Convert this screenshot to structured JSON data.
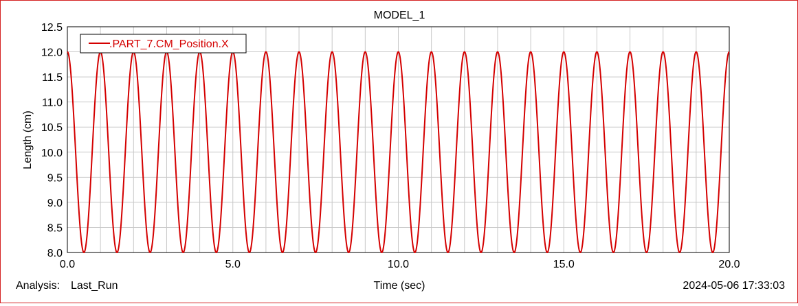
{
  "chart_data": {
    "type": "line",
    "title": "MODEL_1",
    "xlabel": "Time (sec)",
    "ylabel": "Length (cm)",
    "xlim": [
      0.0,
      20.0
    ],
    "ylim": [
      8.0,
      12.5
    ],
    "x_ticks": [
      "0.0",
      "5.0",
      "10.0",
      "15.0",
      "20.0"
    ],
    "y_ticks": [
      "12.5",
      "12.0",
      "11.5",
      "11.0",
      "10.5",
      "10.0",
      "9.5",
      "9.0",
      "8.5",
      "8.0"
    ],
    "grid": true,
    "legend_position": "top-left",
    "series": [
      {
        "name": ".PART_7.CM_Position.X",
        "color": "#d40000",
        "function": "10 + 2*cos(2*pi*t)",
        "amplitude": 2.0,
        "offset": 10.0,
        "period": 1.0,
        "peaks_x": [
          0,
          1,
          2,
          3,
          4,
          5,
          6,
          7,
          8,
          9,
          10,
          11,
          12,
          13,
          14,
          15,
          16,
          17,
          18,
          19,
          20
        ],
        "peaks_y": 12.0,
        "troughs_x": [
          0.5,
          1.5,
          2.5,
          3.5,
          4.5,
          5.5,
          6.5,
          7.5,
          8.5,
          9.5,
          10.5,
          11.5,
          12.5,
          13.5,
          14.5,
          15.5,
          16.5,
          17.5,
          18.5,
          19.5
        ],
        "troughs_y": 8.0
      }
    ]
  },
  "footer": {
    "analysis_label": "Analysis:",
    "analysis_value": "Last_Run",
    "timestamp": "2024-05-06 17:33:03"
  },
  "colors": {
    "frame": "#d42020",
    "grid": "#c8c8c8",
    "series": "#d40000"
  }
}
